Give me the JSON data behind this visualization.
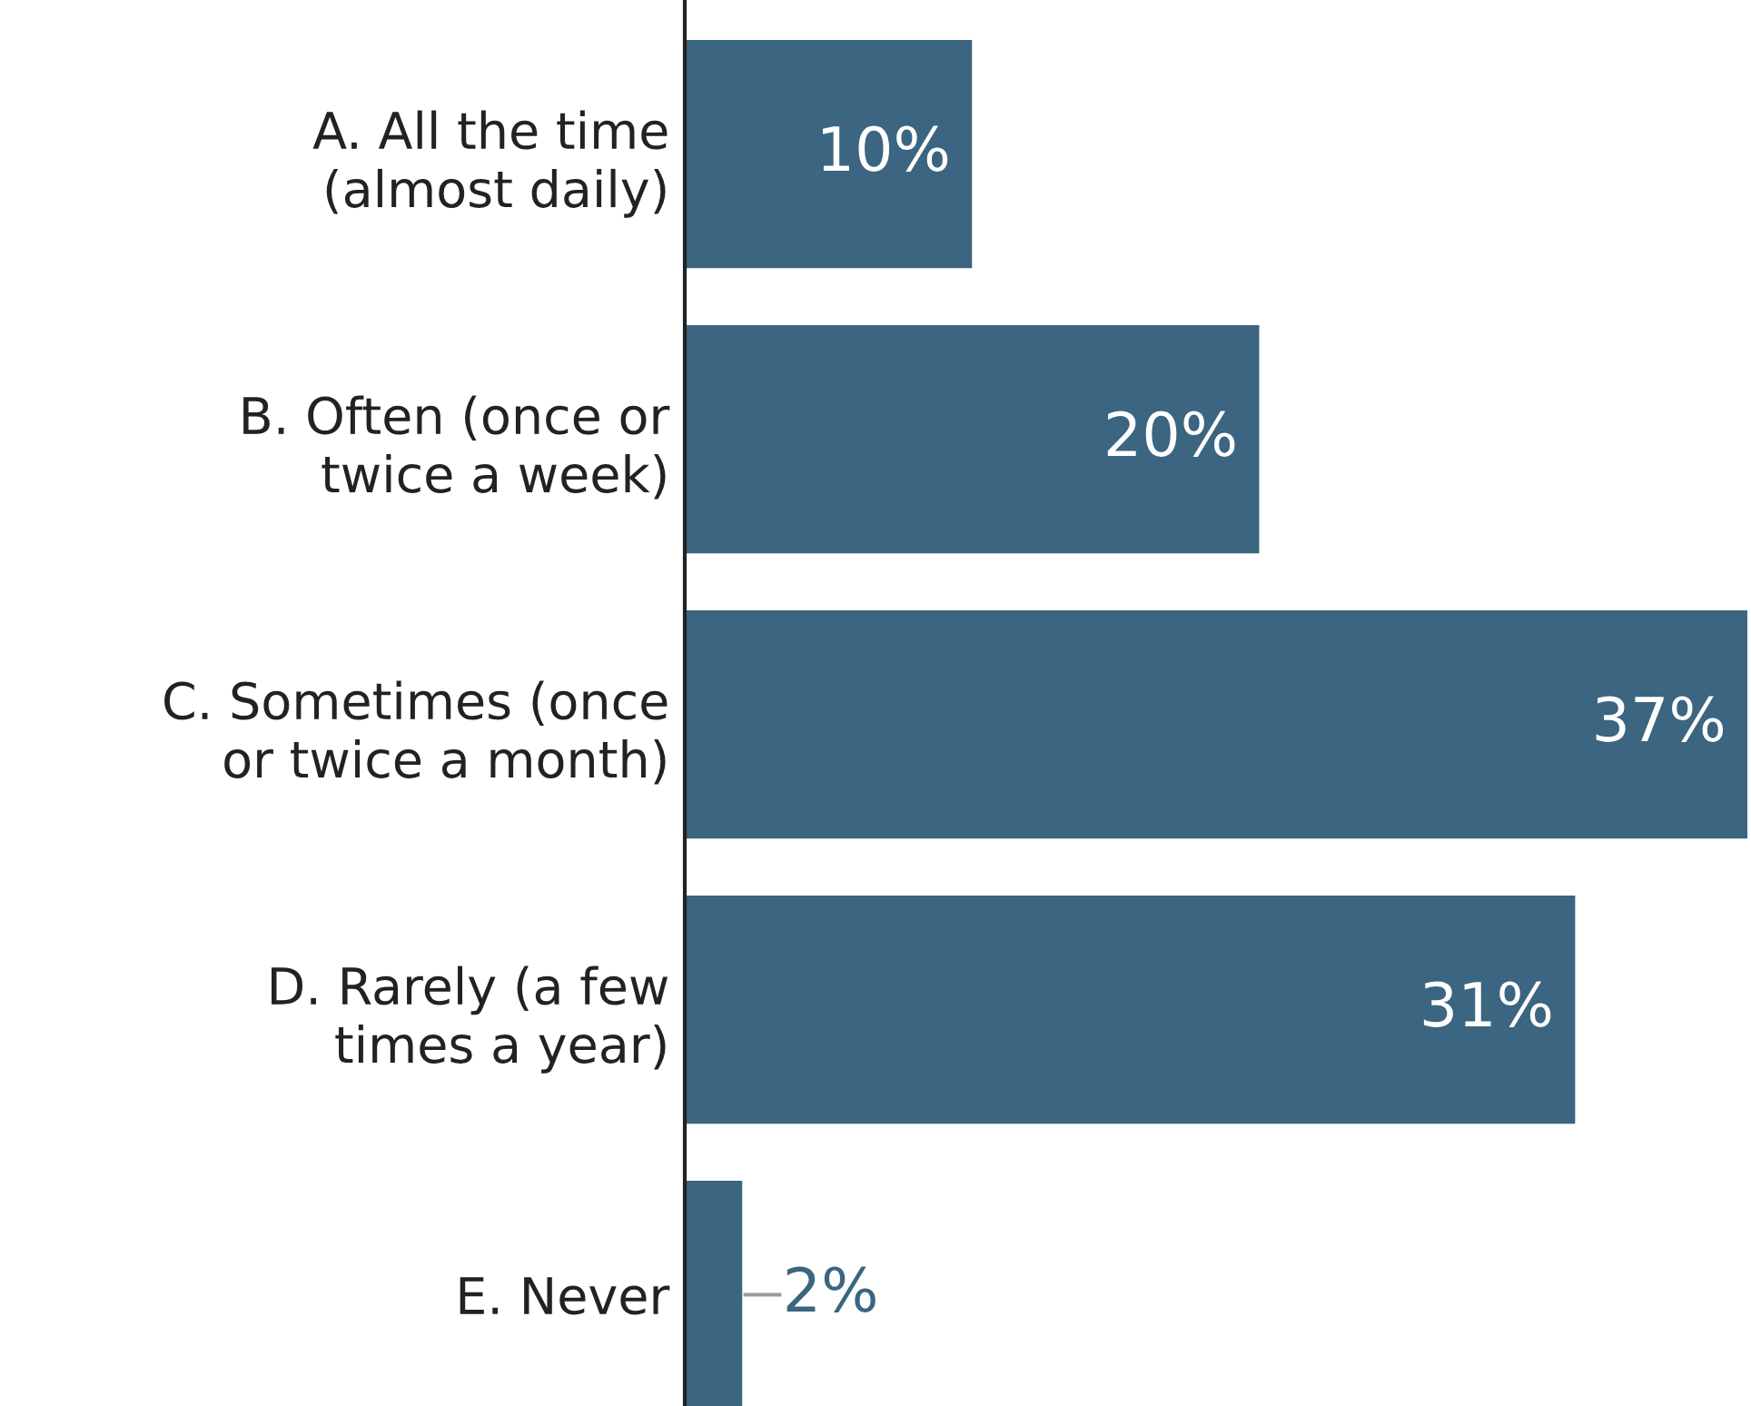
{
  "chart_data": {
    "type": "bar",
    "orientation": "horizontal",
    "categories": [
      "A. All the time\n(almost daily)",
      "B. Often (once or\ntwice a week)",
      "C. Sometimes (once\nor twice a month)",
      "D. Rarely (a few\ntimes a year)",
      "E. Never"
    ],
    "values": [
      10,
      20,
      37,
      31,
      2
    ],
    "value_labels": [
      "10%",
      "20%",
      "37%",
      "31%",
      "2%"
    ],
    "color": "#3b6580",
    "xlim": [
      0,
      37
    ],
    "grid": false,
    "legend": false
  }
}
